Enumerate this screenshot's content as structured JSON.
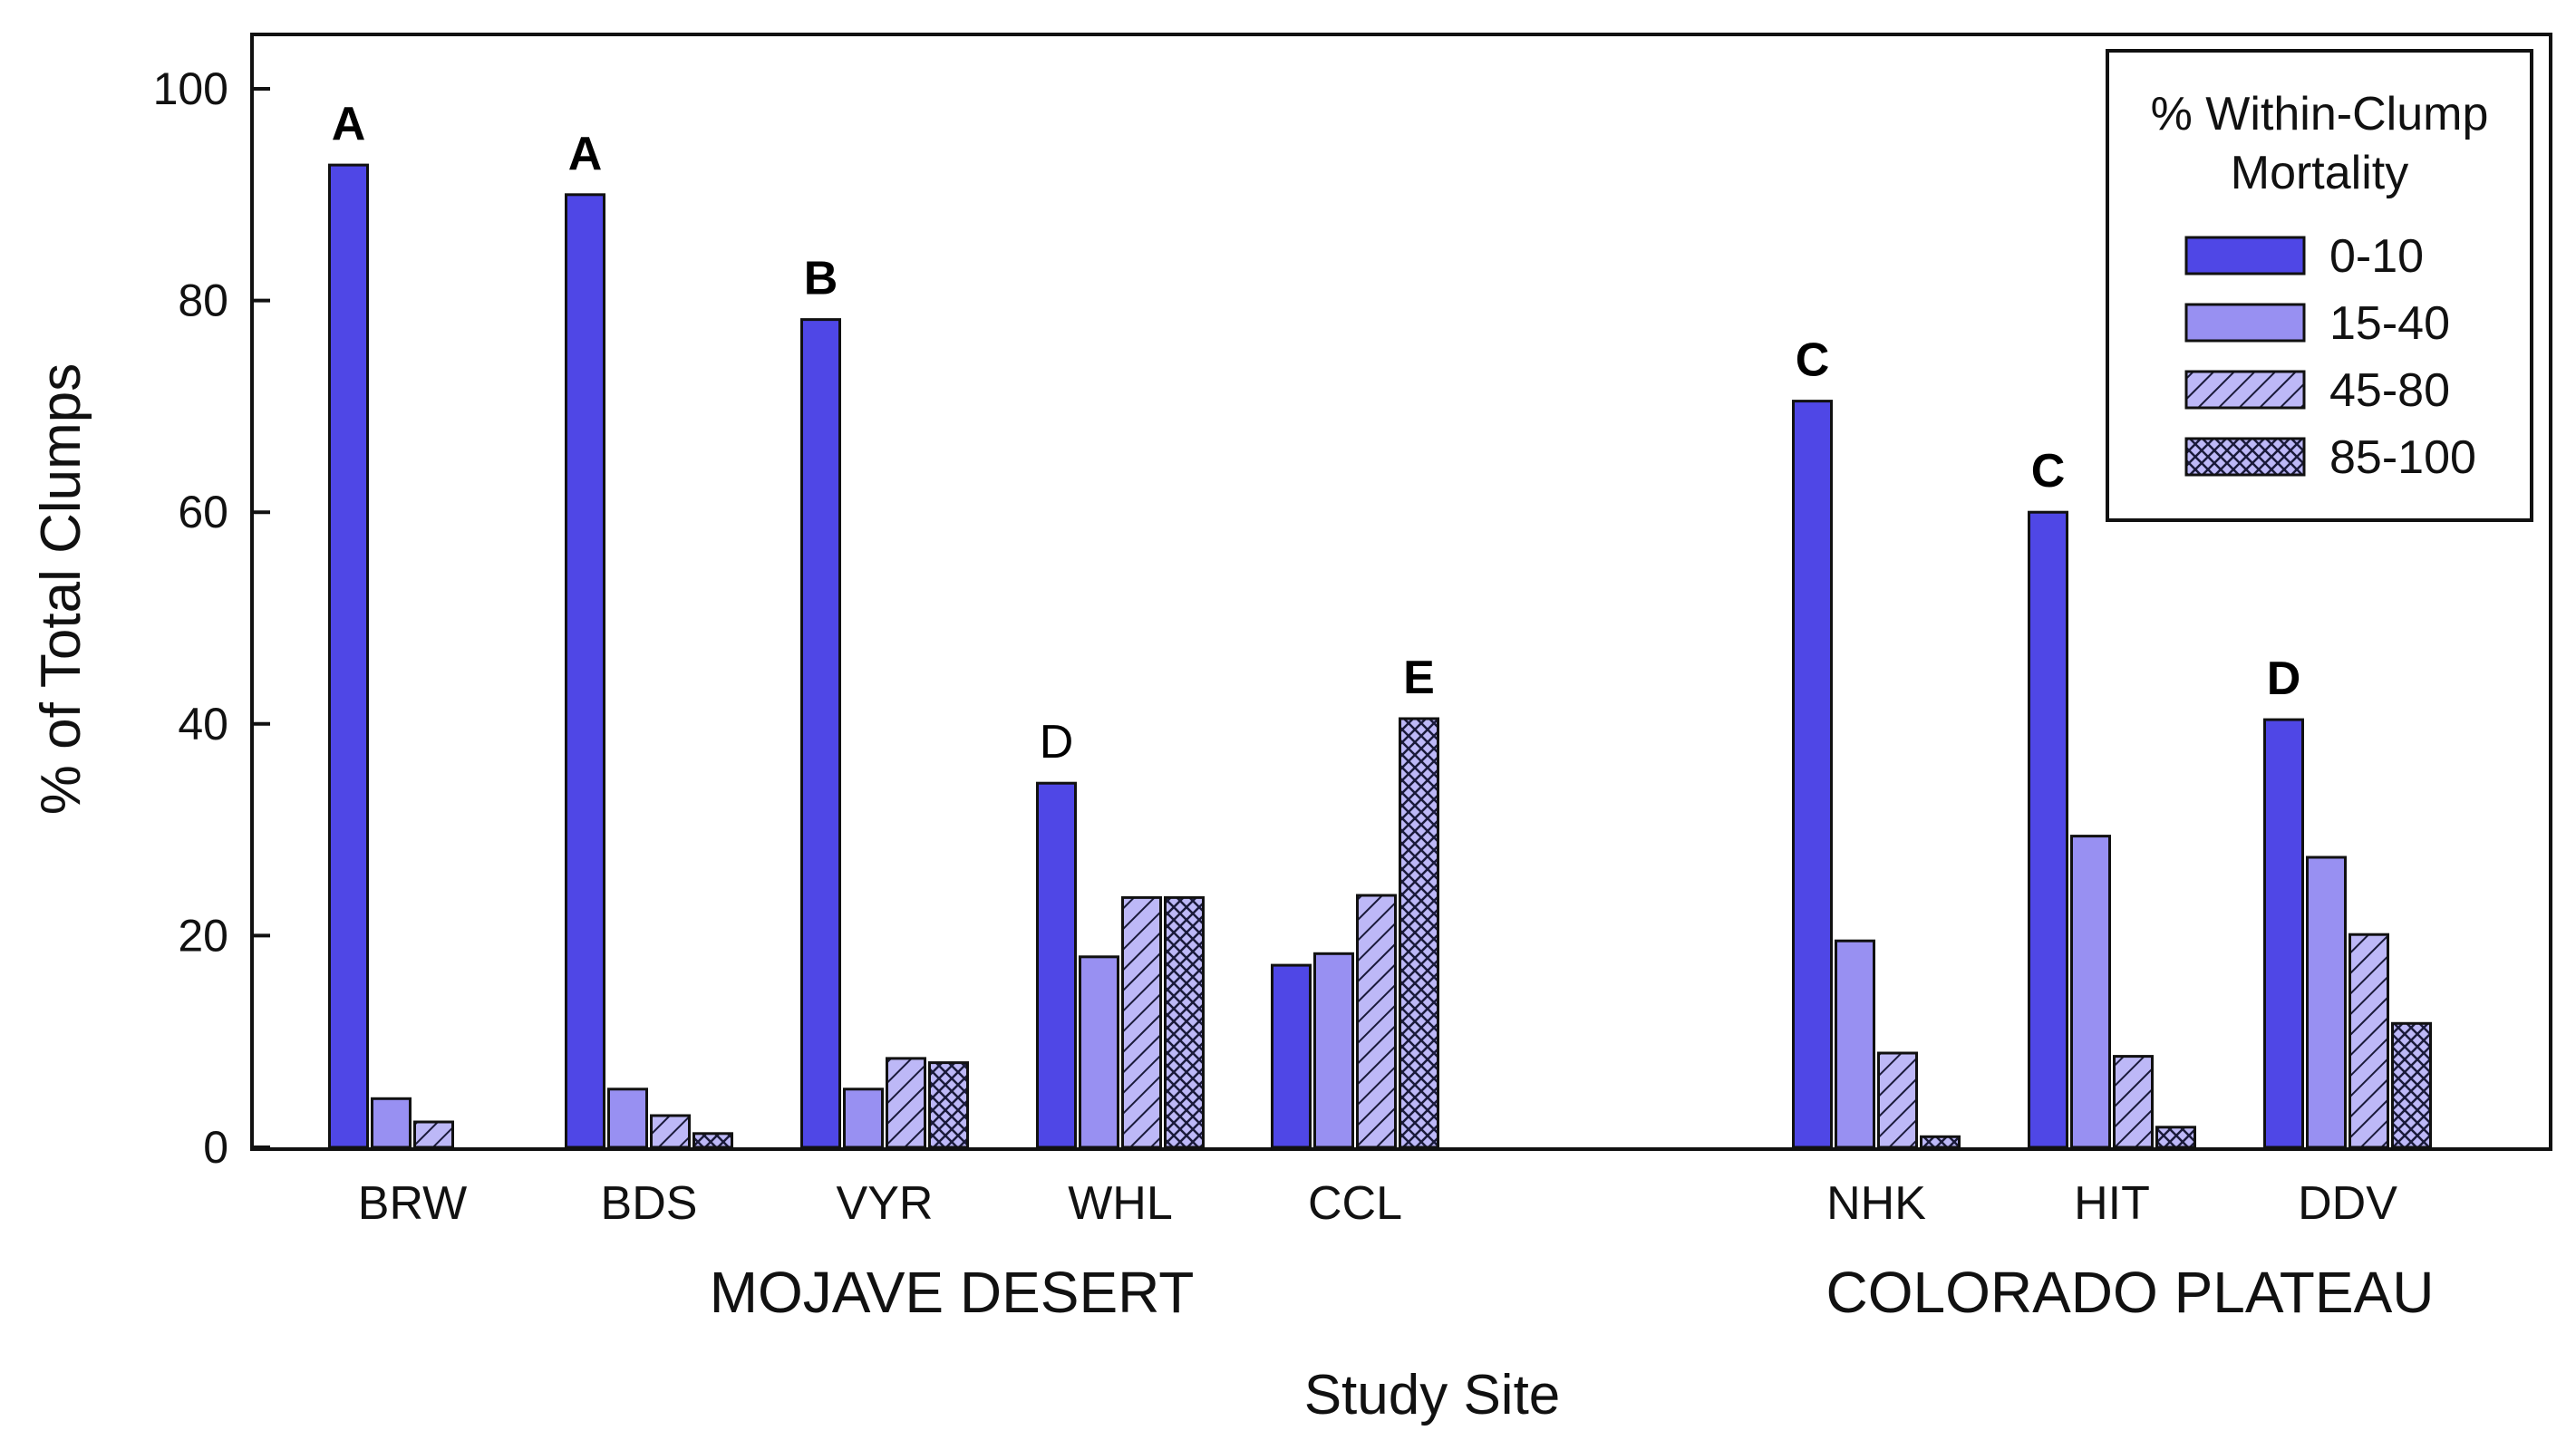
{
  "chart_data": {
    "type": "bar",
    "title": "",
    "xlabel": "Study Site",
    "ylabel": "% of Total Clumps",
    "ylim": [
      0,
      100
    ],
    "yticks": [
      0,
      20,
      40,
      60,
      80,
      100
    ],
    "grid": false,
    "legend_position": "top-right",
    "legend_title_lines": [
      "% Within-Clump",
      "Mortality"
    ],
    "categories": [
      "BRW",
      "BDS",
      "VYR",
      "WHL",
      "CCL",
      "NHK",
      "HIT",
      "DDV"
    ],
    "regions": [
      {
        "label": "MOJAVE DESERT",
        "sites": [
          "BRW",
          "BDS",
          "VYR",
          "WHL",
          "CCL"
        ]
      },
      {
        "label": "COLORADO PLATEAU",
        "sites": [
          "NHK",
          "HIT",
          "DDV"
        ]
      }
    ],
    "series": [
      {
        "name": "0-10",
        "fill": "solid-dark",
        "values": [
          92.8,
          90.0,
          78.2,
          34.4,
          17.2,
          70.5,
          60.0,
          40.4
        ]
      },
      {
        "name": "15-40",
        "fill": "solid-light",
        "values": [
          4.6,
          5.5,
          5.5,
          18.0,
          18.3,
          19.5,
          29.4,
          27.4
        ]
      },
      {
        "name": "45-80",
        "fill": "diagonal-hatch",
        "values": [
          2.4,
          3.0,
          8.4,
          23.6,
          23.8,
          8.9,
          8.6,
          20.1
        ]
      },
      {
        "name": "85-100",
        "fill": "cross-hatch",
        "values": [
          0,
          1.3,
          8.0,
          23.6,
          40.5,
          1.0,
          1.9,
          11.7
        ]
      }
    ],
    "annotations": [
      {
        "site": "BRW",
        "letter": "A",
        "bold": true
      },
      {
        "site": "BDS",
        "letter": "A",
        "bold": true
      },
      {
        "site": "VYR",
        "letter": "B",
        "bold": true
      },
      {
        "site": "WHL",
        "letter": "D",
        "bold": false
      },
      {
        "site": "CCL",
        "letter": "E",
        "bold": true,
        "on_series": 3
      },
      {
        "site": "NHK",
        "letter": "C",
        "bold": true
      },
      {
        "site": "HIT",
        "letter": "C",
        "bold": true
      },
      {
        "site": "DDV",
        "letter": "D",
        "bold": true
      }
    ]
  },
  "colors": {
    "dark_bar": "#4F47E6",
    "light_bar": "#9890F2",
    "hatch_bg": "#BDB8F7",
    "hatch_line": "#1A1A3A",
    "axis": "#111111"
  }
}
